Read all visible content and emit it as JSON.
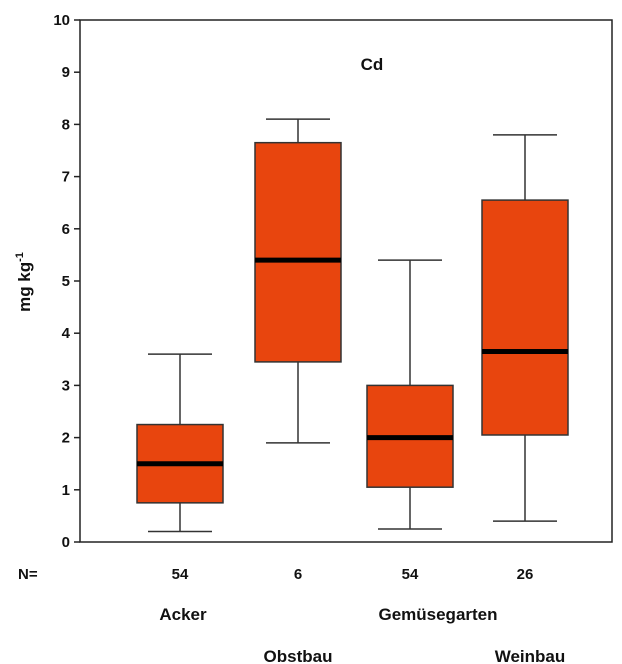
{
  "chart_data": {
    "type": "boxplot",
    "title": "Cd",
    "ylabel_main": "mg kg",
    "ylabel_sup": "-1",
    "ylim": [
      0,
      10
    ],
    "yticks": [
      0,
      1,
      2,
      3,
      4,
      5,
      6,
      7,
      8,
      9,
      10
    ],
    "n_prefix": "N=",
    "grid": false,
    "box_color": "#E8450E",
    "categories": [
      "Acker",
      "Obstbau",
      "Gemüsegarten",
      "Weinbau"
    ],
    "n": [
      "54",
      "6",
      "54",
      "26"
    ],
    "series": [
      {
        "category": "Acker",
        "min": 0.2,
        "q1": 0.75,
        "median": 1.5,
        "q3": 2.25,
        "max": 3.6
      },
      {
        "category": "Obstbau",
        "min": 1.9,
        "q1": 3.45,
        "median": 5.4,
        "q3": 7.65,
        "max": 8.1
      },
      {
        "category": "Gemüsegarten",
        "min": 0.25,
        "q1": 1.05,
        "median": 2.0,
        "q3": 3.0,
        "max": 5.4
      },
      {
        "category": "Weinbau",
        "min": 0.4,
        "q1": 2.05,
        "median": 3.65,
        "q3": 6.55,
        "max": 7.8
      }
    ]
  }
}
